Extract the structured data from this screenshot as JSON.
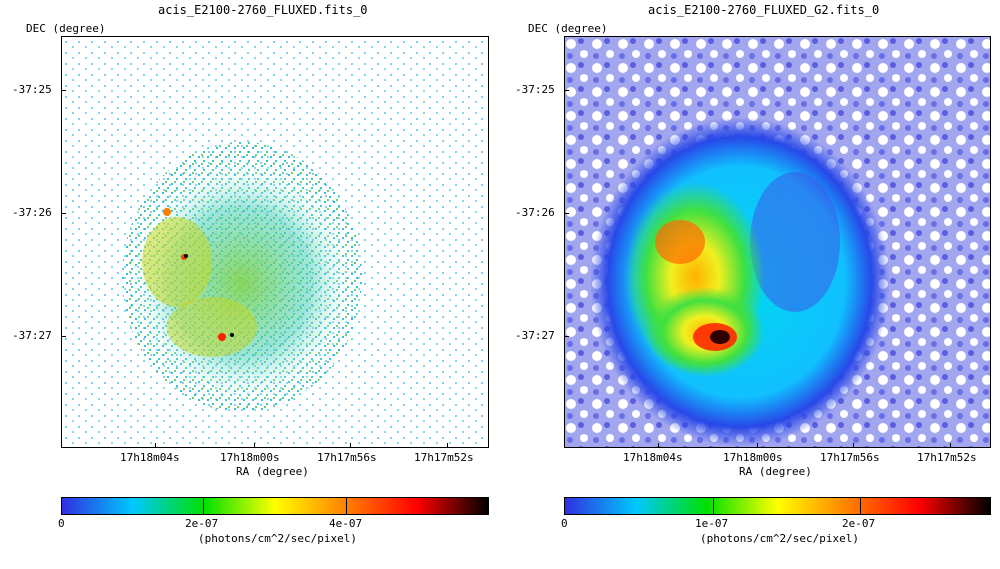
{
  "panels": [
    {
      "title": "acis_E2100-2760_FLUXED.fits_0",
      "ylabel": "DEC (degree)",
      "xlabel": "RA (degree)",
      "yticks": [
        "-37:25",
        "-37:26",
        "-37:27"
      ],
      "xticks": [
        "17h18m04s",
        "17h18m00s",
        "17h17m56s",
        "17h17m52s"
      ],
      "colorbar": {
        "ticks": [
          "0",
          "2e-07",
          "4e-07"
        ],
        "unit": "(photons/cm^2/sec/pixel)"
      }
    },
    {
      "title": "acis_E2100-2760_FLUXED_G2.fits_0",
      "ylabel": "DEC (degree)",
      "xlabel": "RA (degree)",
      "yticks": [
        "-37:25",
        "-37:26",
        "-37:27"
      ],
      "xticks": [
        "17h18m04s",
        "17h18m00s",
        "17h17m56s",
        "17h17m52s"
      ],
      "colorbar": {
        "ticks": [
          "0",
          "1e-07",
          "2e-07"
        ],
        "unit": "(photons/cm^2/sec/pixel)"
      }
    }
  ],
  "colors": {
    "map_stops": [
      "#ffffff",
      "#3030e0",
      "#00c8ff",
      "#00e000",
      "#ffff00",
      "#ff8000",
      "#ff0000",
      "#000000"
    ]
  }
}
